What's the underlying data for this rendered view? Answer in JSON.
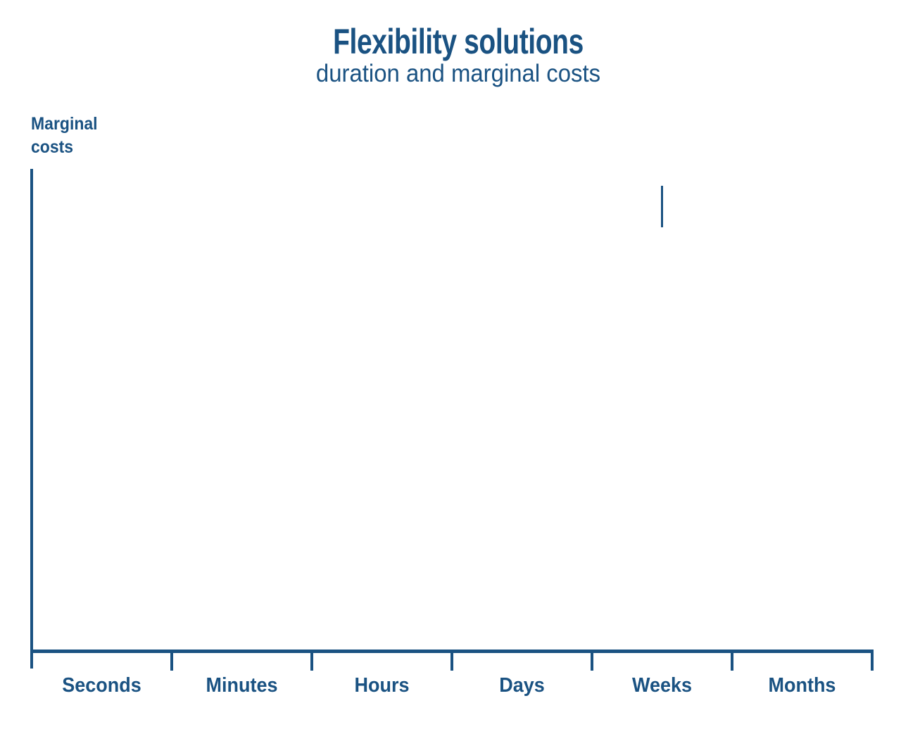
{
  "title": "Flexibility solutions",
  "subtitle": "duration and marginal costs",
  "y_axis_label": {
    "line1": "Marginal",
    "line2": "costs"
  },
  "colors": {
    "primary": "#1a5282",
    "background": "#ffffff"
  },
  "chart_data": {
    "type": "line",
    "title": "Flexibility solutions",
    "subtitle": "duration and marginal costs",
    "xlabel": "",
    "ylabel": "Marginal costs",
    "categories": [
      "Seconds",
      "Minutes",
      "Hours",
      "Days",
      "Weeks",
      "Months"
    ],
    "series": [],
    "grid": false,
    "legend": false,
    "axes_only": true,
    "annotations": [
      {
        "type": "vertical-stroke",
        "x_category": "Weeks",
        "description": "Short vertical line segment centered above the Weeks interval (partially drawn chart element)"
      }
    ]
  }
}
